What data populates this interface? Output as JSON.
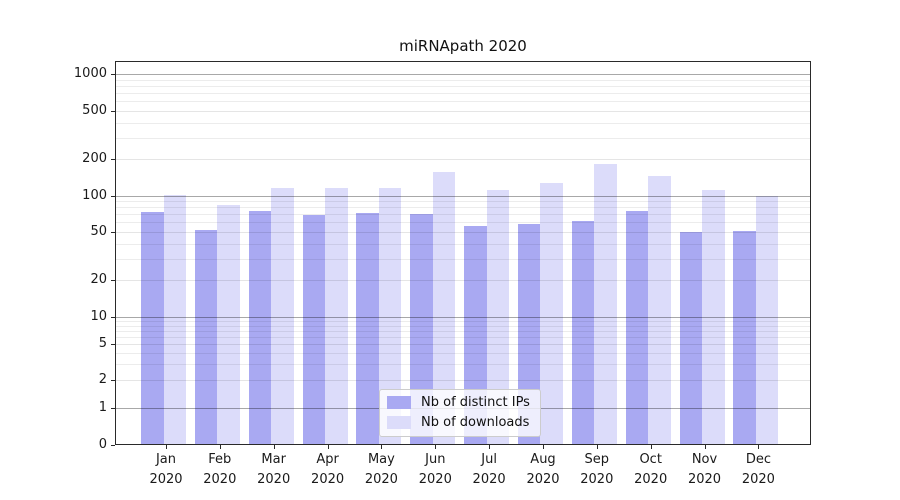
{
  "chart_data": {
    "type": "bar",
    "title": "miRNApath 2020",
    "categories": [
      "Jan",
      "Feb",
      "Mar",
      "Apr",
      "May",
      "Jun",
      "Jul",
      "Aug",
      "Sep",
      "Oct",
      "Nov",
      "Dec"
    ],
    "year_label": "2020",
    "series": [
      {
        "name": "Nb of distinct IPs",
        "color": "#a9a9f2",
        "values": [
          73,
          52,
          74,
          69,
          72,
          71,
          56,
          58,
          62,
          74,
          50,
          51
        ]
      },
      {
        "name": "Nb of downloads",
        "color": "#dcdcfa",
        "values": [
          101,
          84,
          116,
          116,
          116,
          157,
          112,
          127,
          183,
          145,
          112,
          100
        ]
      }
    ],
    "yticks": [
      0,
      1,
      2,
      5,
      10,
      20,
      50,
      100,
      200,
      500,
      1000
    ],
    "ylim": [
      0,
      1400
    ],
    "yaxis_scale": "log-like (log above 1, linear 0-1)",
    "grid": "on",
    "major_grid_values": [
      1,
      10,
      100,
      1000
    ],
    "legend_position": "bottom-center inside plot"
  }
}
